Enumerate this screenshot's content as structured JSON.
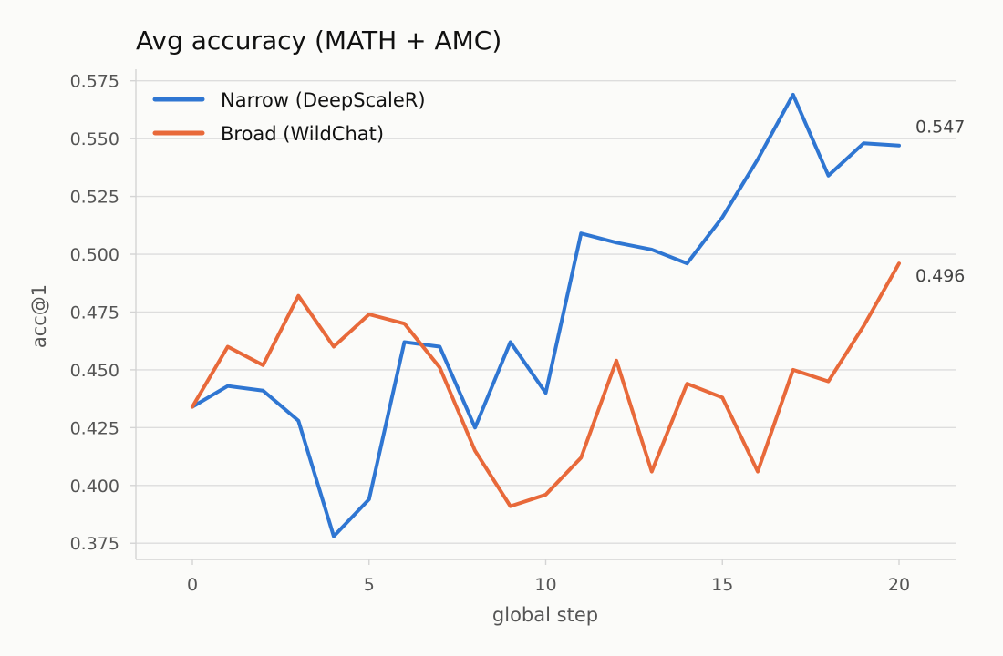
{
  "chart_data": {
    "type": "line",
    "title": "Avg accuracy (MATH + AMC)",
    "xlabel": "global step",
    "ylabel": "acc@1",
    "x": [
      0,
      1,
      2,
      3,
      4,
      5,
      6,
      7,
      8,
      9,
      10,
      11,
      12,
      13,
      14,
      15,
      16,
      17,
      18,
      19,
      20
    ],
    "xlim": [
      -1.6,
      21.6
    ],
    "ylim": [
      0.368,
      0.58
    ],
    "xticks": [
      0,
      5,
      10,
      15,
      20
    ],
    "yticks": [
      0.375,
      0.4,
      0.425,
      0.45,
      0.475,
      0.5,
      0.525,
      0.55,
      0.575
    ],
    "grid": "horizontal",
    "legend_position": "top-left",
    "series": [
      {
        "name": "Narrow (DeepScaleR)",
        "color": "#2f76d2",
        "values": [
          0.434,
          0.443,
          0.441,
          0.428,
          0.378,
          0.394,
          0.462,
          0.46,
          0.425,
          0.462,
          0.44,
          0.509,
          0.505,
          0.502,
          0.496,
          0.516,
          0.541,
          0.569,
          0.534,
          0.548,
          0.547
        ],
        "end_label": "0.547"
      },
      {
        "name": "Broad (WildChat)",
        "color": "#e8693a",
        "values": [
          0.434,
          0.46,
          0.452,
          0.482,
          0.46,
          0.474,
          0.47,
          0.451,
          0.415,
          0.391,
          0.396,
          0.412,
          0.454,
          0.406,
          0.444,
          0.438,
          0.406,
          0.45,
          0.445,
          0.469,
          0.496
        ],
        "end_label": "0.496"
      }
    ]
  }
}
